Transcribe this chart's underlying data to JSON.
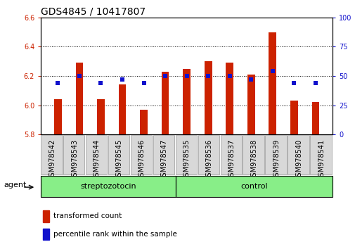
{
  "title": "GDS4845 / 10417807",
  "samples": [
    "GSM978542",
    "GSM978543",
    "GSM978544",
    "GSM978545",
    "GSM978546",
    "GSM978547",
    "GSM978535",
    "GSM978536",
    "GSM978537",
    "GSM978538",
    "GSM978539",
    "GSM978540",
    "GSM978541"
  ],
  "red_values": [
    6.04,
    6.29,
    6.04,
    6.14,
    5.97,
    6.23,
    6.25,
    6.3,
    6.29,
    6.21,
    6.5,
    6.03,
    6.02
  ],
  "blue_values": [
    44,
    50,
    44,
    47,
    44,
    50,
    50,
    50,
    50,
    47,
    54,
    44,
    44
  ],
  "group1_label": "streptozotocin",
  "group2_label": "control",
  "group1_count": 6,
  "group2_count": 7,
  "ylim_left": [
    5.8,
    6.6
  ],
  "ylim_right": [
    0,
    100
  ],
  "yticks_left": [
    5.8,
    6.0,
    6.2,
    6.4,
    6.6
  ],
  "yticks_right": [
    0,
    25,
    50,
    75,
    100
  ],
  "bar_color": "#cc2200",
  "dot_color": "#1111cc",
  "bg_color": "#d8d8d8",
  "group_bg": "#88ee88",
  "agent_label": "agent",
  "legend1": "transformed count",
  "legend2": "percentile rank within the sample",
  "title_fontsize": 10,
  "tick_fontsize": 7,
  "label_fontsize": 8,
  "bar_width": 0.35
}
